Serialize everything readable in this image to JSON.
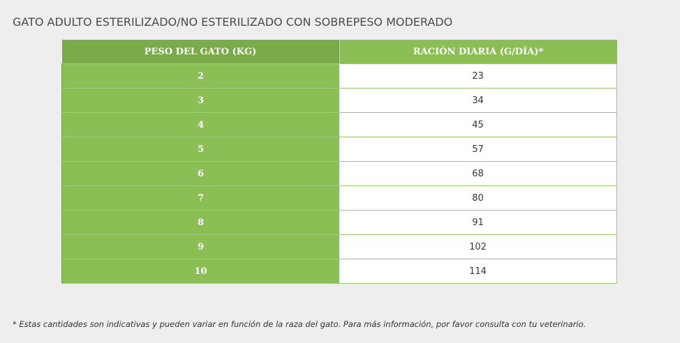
{
  "title": "GATO ADULTO ESTERILIZADO/NO ESTERILIZADO CON SOBREPESO MODERADO",
  "table": {
    "headers": {
      "weight": "PESO DEL GATO (KG)",
      "ration": "RACIÓN DIARIA (G/DÍA)*"
    },
    "rows": [
      {
        "weight": "2",
        "ration": "23"
      },
      {
        "weight": "3",
        "ration": "34"
      },
      {
        "weight": "4",
        "ration": "45"
      },
      {
        "weight": "5",
        "ration": "57"
      },
      {
        "weight": "6",
        "ration": "68"
      },
      {
        "weight": "7",
        "ration": "80"
      },
      {
        "weight": "8",
        "ration": "91"
      },
      {
        "weight": "9",
        "ration": "102"
      },
      {
        "weight": "10",
        "ration": "114"
      }
    ]
  },
  "footnote": "* Estas cantidades son indicativas y pueden variar en función de la raza del gato. Para más información, por favor consulta con tu veterinario.",
  "colors": {
    "header_weight_bg": "#7aaa4a",
    "green_bg": "#8bbf56",
    "page_bg": "#eeeeee"
  }
}
